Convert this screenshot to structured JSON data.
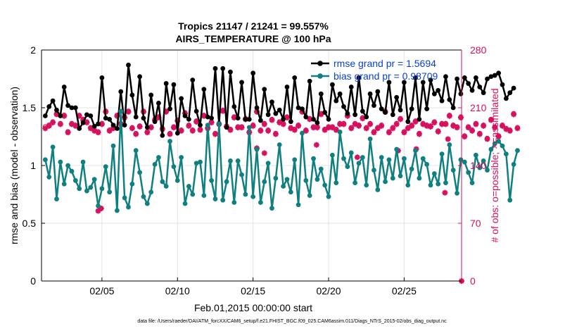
{
  "chart_data": {
    "type": "line",
    "title": "Tropics 21147 / 21241 = 99.557%",
    "subtitle": "AIRS_TEMPERATURE @ 100 hPa",
    "xlabel": "Feb.01,2015 00:00:00 start",
    "ylabel_left": "rmse and bias (model - observation)",
    "ylabel_right": "# of obs: o=possible; ×=assimilated",
    "xlim": [
      1.0,
      28.8
    ],
    "ylim_left": [
      0,
      2
    ],
    "ylim_right": [
      0,
      280
    ],
    "x_ticks": [
      5,
      10,
      15,
      20,
      25
    ],
    "x_tick_labels": [
      "02/05",
      "02/10",
      "02/15",
      "02/20",
      "02/25"
    ],
    "y_ticks_left": [
      0,
      0.5,
      1,
      1.5,
      2
    ],
    "y_tick_labels_left": [
      "0",
      "0.5",
      "1",
      "1.5",
      "2"
    ],
    "y_ticks_right": [
      0,
      70,
      140,
      210,
      280
    ],
    "y_tick_labels_right": [
      "0",
      "70",
      "140",
      "210",
      "280"
    ],
    "legend_position": "top-right",
    "colors": {
      "rmse": "#000000",
      "bias": "#0f7f7f",
      "obs": "#d6105e",
      "legend_text": "#0a3fd6"
    },
    "series": [
      {
        "name": "rmse grand pr = 1.5694",
        "axis": "left",
        "x_start": 1.25,
        "x_step": 0.25,
        "values": [
          1.43,
          1.51,
          1.56,
          1.48,
          1.43,
          1.68,
          1.52,
          1.5,
          1.5,
          1.32,
          1.37,
          1.44,
          1.43,
          1.34,
          1.36,
          1.76,
          1.41,
          1.4,
          1.35,
          1.32,
          1.64,
          1.35,
          1.87,
          1.61,
          1.42,
          1.77,
          1.41,
          1.33,
          1.61,
          1.38,
          1.54,
          1.26,
          1.71,
          1.49,
          1.7,
          1.28,
          1.58,
          1.43,
          1.4,
          1.74,
          1.47,
          1.35,
          1.66,
          1.42,
          1.41,
          1.84,
          1.36,
          1.84,
          1.33,
          1.81,
          1.51,
          1.41,
          1.72,
          1.4,
          1.4,
          1.8,
          1.5,
          1.39,
          1.66,
          1.44,
          1.55,
          1.45,
          1.48,
          1.4,
          1.68,
          1.38,
          1.76,
          1.5,
          1.49,
          1.42,
          1.73,
          1.4,
          1.37,
          1.62,
          1.46,
          1.4,
          1.7,
          1.56,
          1.62,
          1.51,
          1.45,
          1.68,
          1.44,
          1.76,
          1.47,
          1.42,
          1.62,
          1.52,
          1.64,
          1.49,
          1.46,
          1.72,
          1.44,
          1.59,
          1.48,
          1.72,
          1.38,
          1.49,
          1.76,
          1.4,
          1.72,
          1.49,
          1.74,
          1.62,
          1.65,
          1.56,
          1.77,
          1.57,
          1.5,
          1.75,
          1.62,
          1.76,
          1.71,
          1.65,
          1.76,
          1.68,
          1.63,
          1.75,
          1.77,
          1.78,
          1.8,
          1.7,
          1.58,
          1.63,
          1.67
        ]
      },
      {
        "name": "bias grand pr = 0.98709",
        "axis": "left",
        "x_start": 1.25,
        "x_step": 0.25,
        "values": [
          1.05,
          0.9,
          1.16,
          0.71,
          1.03,
          0.84,
          1.0,
          0.95,
          0.87,
          0.8,
          1.03,
          0.78,
          0.81,
          0.88,
          0.65,
          0.8,
          0.99,
          0.77,
          1.17,
          0.61,
          1.47,
          0.72,
          0.64,
          0.84,
          1.13,
          0.94,
          0.73,
          0.67,
          0.77,
          1.01,
          1.07,
          0.86,
          0.82,
          1.21,
          0.99,
          0.87,
          1.07,
          0.67,
          0.82,
          0.75,
          1.02,
          1.03,
          0.74,
          1.35,
          0.87,
          0.71,
          1.36,
          0.7,
          0.86,
          1.04,
          0.68,
          1.04,
          0.92,
          0.75,
          1.33,
          0.73,
          1.14,
          0.68,
          0.86,
          1.02,
          0.63,
          0.89,
          1.18,
          0.82,
          0.88,
          0.77,
          1.05,
          0.66,
          1.28,
          0.87,
          0.74,
          1.06,
          0.88,
          0.97,
          0.83,
          0.73,
          1.09,
          0.85,
          1.29,
          1.06,
          0.99,
          1.11,
          0.85,
          1.02,
          1.07,
          0.83,
          1.23,
          0.96,
          0.79,
          1.07,
          0.86,
          1.05,
          0.89,
          1.14,
          0.91,
          1.06,
          0.83,
          0.97,
          1.13,
          0.89,
          1.06,
          1.01,
          0.83,
          0.93,
          0.84,
          1.1,
          0.85,
          1.18,
          0.96,
          0.76,
          1.05,
          1.03,
          0.94,
          0.85,
          1.09,
          0.98,
          1.04,
          0.96,
          1.14,
          1.19,
          1.21,
          1.17,
          1.1,
          0.7,
          1.01,
          1.13
        ]
      }
    ],
    "obs_assimilated": {
      "x_start": 1.25,
      "x_step": 0.25,
      "values": [
        185,
        188,
        192,
        202,
        190,
        200,
        180,
        190,
        188,
        200,
        195,
        192,
        185,
        182,
        180,
        190,
        205,
        182,
        185,
        200,
        190,
        198,
        205,
        185,
        178,
        187,
        205,
        180,
        186,
        195,
        198,
        184,
        205,
        178,
        186,
        194,
        182,
        203,
        188,
        182,
        193,
        183,
        200,
        185,
        192,
        178,
        190,
        206,
        187,
        183,
        198,
        186,
        186,
        196,
        180,
        188,
        205,
        182,
        190,
        182,
        195,
        178,
        192,
        190,
        198,
        185,
        183,
        188,
        205,
        182,
        196,
        186,
        186,
        202,
        183,
        186,
        186,
        183,
        190,
        190,
        200,
        185,
        190,
        188,
        197,
        185,
        190,
        180,
        185,
        188,
        205,
        180,
        185,
        190,
        196,
        180,
        185,
        188,
        193,
        178,
        190,
        188,
        187,
        192,
        181,
        190,
        190,
        200,
        188,
        186,
        198,
        175,
        186,
        182,
        190,
        178,
        188,
        172,
        195,
        186,
        175,
        188,
        184,
        182,
        202,
        185
      ]
    },
    "obs_possible": {
      "x_start": 1.25,
      "x_step": 0.25,
      "values": [
        187,
        189,
        193,
        203,
        191,
        201,
        181,
        191,
        189,
        201,
        196,
        193,
        186,
        183,
        181,
        191,
        206,
        183,
        186,
        201,
        191,
        199,
        206,
        186,
        179,
        188,
        206,
        181,
        187,
        196,
        199,
        185,
        206,
        179,
        187,
        195,
        183,
        204,
        189,
        183,
        194,
        184,
        201,
        186,
        193,
        179,
        191,
        207,
        188,
        184,
        199,
        187,
        187,
        197,
        181,
        189,
        206,
        183,
        191,
        183,
        196,
        179,
        193,
        191,
        199,
        186,
        184,
        189,
        206,
        183,
        197,
        187,
        187,
        203,
        184,
        187,
        187,
        184,
        191,
        191,
        201,
        186,
        191,
        189,
        198,
        186,
        191,
        181,
        186,
        189,
        206,
        181,
        186,
        191,
        197,
        181,
        186,
        189,
        194,
        179,
        191,
        189,
        188,
        193,
        182,
        191,
        191,
        201,
        189,
        187,
        199,
        176,
        187,
        183,
        191,
        179,
        189,
        173,
        196,
        187,
        176,
        189,
        185,
        183,
        203,
        186
      ]
    },
    "obs_extra": [
      {
        "x": 4.75,
        "v": 85
      },
      {
        "x": 4.95,
        "v": 88
      },
      {
        "x": 15.25,
        "v": 161
      },
      {
        "x": 15.75,
        "v": 155
      },
      {
        "x": 19.2,
        "v": 165
      },
      {
        "x": 21.9,
        "v": 150
      },
      {
        "x": 24.6,
        "v": 158
      },
      {
        "x": 25.8,
        "v": 160
      },
      {
        "x": 27.7,
        "v": 107
      },
      {
        "x": 27.9,
        "v": 172
      },
      {
        "x": 28.8,
        "v": 0
      }
    ]
  },
  "footer_text": "data file: /Users/raeder/DAI/ATM_forcXX/CAM6_setup/f.e21.FHIST_BGC.f09_025.CAM6assim.011/Diags_NTrS_2015-02/obs_diag_output.nc"
}
